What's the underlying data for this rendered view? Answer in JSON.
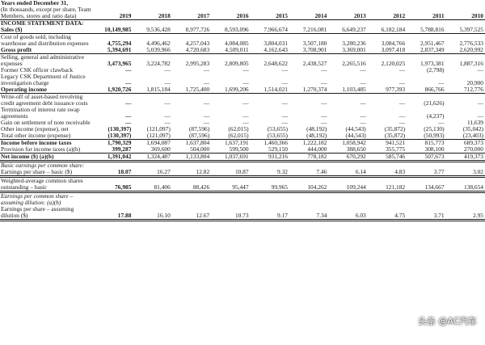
{
  "header": {
    "label_lines": [
      "Years ended December 31,",
      "(In thousands, except per share, Team Members, stores and ratio data)"
    ],
    "years": [
      "2019",
      "2018",
      "2017",
      "2016",
      "2015",
      "2014",
      "2013",
      "2012",
      "2011",
      "2010"
    ]
  },
  "rows": [
    {
      "label": "INCOME STATEMENT DATA:",
      "style": "section",
      "values": [
        "",
        "",
        "",
        "",
        "",
        "",
        "",
        "",
        "",
        ""
      ]
    },
    {
      "label": "Sales ($)",
      "style": "bold rule",
      "values": [
        "10,149,985",
        "9,536,428",
        "8,977,726",
        "8,593,096",
        "7,966,674",
        "7,216,081",
        "6,649,237",
        "6,182,184",
        "5,788,816",
        "5,397,525"
      ]
    },
    {
      "label": "Cost of goods sold, including warehouse and distribution expenses",
      "style": "",
      "values": [
        "4,755,294",
        "4,496,462",
        "4,257,043",
        "4,084,085",
        "3,804,031",
        "3,507,180",
        "3,280,236",
        "3,084,766",
        "2,951,467",
        "2,776,533"
      ]
    },
    {
      "label": "Gross profit",
      "style": "bold rule",
      "values": [
        "5,394,691",
        "5,039,966",
        "4,720,683",
        "4,509,011",
        "4,162,643",
        "3,708,901",
        "3,369,001",
        "3,097,418",
        "2,837,349",
        "2,620,992"
      ]
    },
    {
      "label": "Selling, general and administrative expenses",
      "style": "",
      "values": [
        "3,473,965",
        "3,224,782",
        "2,995,283",
        "2,809,805",
        "2,648,622",
        "2,438,527",
        "2,265,516",
        "2,120,025",
        "1,973,381",
        "1,887,316"
      ]
    },
    {
      "label": "Former CSK officer clawback",
      "style": "",
      "values": [
        "—",
        "—",
        "—",
        "—",
        "—",
        "—",
        "—",
        "—",
        "(2,798)",
        "—"
      ]
    },
    {
      "label": "Legacy CSK Department of Justice investigation charge",
      "style": "",
      "values": [
        "—",
        "—",
        "—",
        "—",
        "—",
        "—",
        "—",
        "—",
        "—",
        "20,900"
      ]
    },
    {
      "label": "Operating income",
      "style": "bold rule",
      "values": [
        "1,920,726",
        "1,815,184",
        "1,725,400",
        "1,699,206",
        "1,514,021",
        "1,270,374",
        "1,103,485",
        "977,393",
        "866,766",
        "712,776"
      ]
    },
    {
      "label": "Write-off of asset-based revolving credit agreement debt issuance costs",
      "style": "",
      "values": [
        "—",
        "—",
        "—",
        "—",
        "—",
        "—",
        "—",
        "—",
        "(21,626)",
        "—"
      ]
    },
    {
      "label": "Termination of interest rate swap agreements",
      "style": "",
      "values": [
        "—",
        "—",
        "—",
        "—",
        "—",
        "—",
        "—",
        "—",
        "(4,237)",
        "—"
      ]
    },
    {
      "label": "Gain on settlement of note receivable",
      "style": "",
      "values": [
        "—",
        "—",
        "—",
        "—",
        "—",
        "—",
        "—",
        "—",
        "—",
        "11,639"
      ]
    },
    {
      "label": "Other income (expense), net",
      "style": "",
      "values": [
        "(130,397)",
        "(121,097)",
        "(87,596)",
        "(62,015)",
        "(53,655)",
        "(48,192)",
        "(44,543)",
        "(35,872)",
        "(25,130)",
        "(35,042)"
      ]
    },
    {
      "label": "Total other income (expense)",
      "style": "rule",
      "values": [
        "(130,397)",
        "(121,097)",
        "(87,596)",
        "(62,015)",
        "(53,655)",
        "(48,192)",
        "(44,543)",
        "(35,872)",
        "(50,993)",
        "(23,403)"
      ]
    },
    {
      "label": "Income before income taxes",
      "style": "bold",
      "values": [
        "1,790,329",
        "1,694,087",
        "1,637,804",
        "1,637,191",
        "1,460,366",
        "1,222,182",
        "1,058,942",
        "941,521",
        "815,773",
        "689,373"
      ]
    },
    {
      "label": "Provision for income taxes (a)(b)",
      "style": "rule",
      "values": [
        "399,287",
        "369,600",
        "504,000",
        "599,500",
        "529,150",
        "444,000",
        "388,650",
        "355,775",
        "308,100",
        "270,000"
      ]
    },
    {
      "label": "Net income ($) (a)(b)",
      "style": "bold dbl",
      "values": [
        "1,391,042",
        "1,324,487",
        "1,133,804",
        "1,037,691",
        "931,216",
        "778,182",
        "670,292",
        "585,746",
        "507,673",
        "419,373"
      ]
    },
    {
      "label": "Basic earnings per common share:",
      "style": "italic",
      "values": [
        "",
        "",
        "",
        "",
        "",
        "",
        "",
        "",
        "",
        ""
      ]
    },
    {
      "label": "Earnings per share – basic ($)",
      "style": "dbl",
      "values": [
        "18.07",
        "16.27",
        "12.82",
        "10.87",
        "9.32",
        "7.46",
        "6.14",
        "4.83",
        "3.77",
        "3.02"
      ]
    },
    {
      "label": "Weighted-average common shares outstanding – basic",
      "style": "dbl",
      "values": [
        "76,985",
        "81,406",
        "88,426",
        "95,447",
        "99,965",
        "104,262",
        "109,244",
        "121,182",
        "134,667",
        "138,654"
      ]
    },
    {
      "label": "Earnings per common share – assuming dilution: (a)(b)",
      "style": "italic",
      "values": [
        "",
        "",
        "",
        "",
        "",
        "",
        "",
        "",
        "",
        ""
      ]
    },
    {
      "label": "Earnings per share – assuming dilution ($)",
      "style": "dbl",
      "values": [
        "17.88",
        "16.10",
        "12.67",
        "10.73",
        "9.17",
        "7.34",
        "6.03",
        "4.75",
        "3.71",
        "2.95"
      ]
    }
  ],
  "watermark": "头条 @AC汽车"
}
